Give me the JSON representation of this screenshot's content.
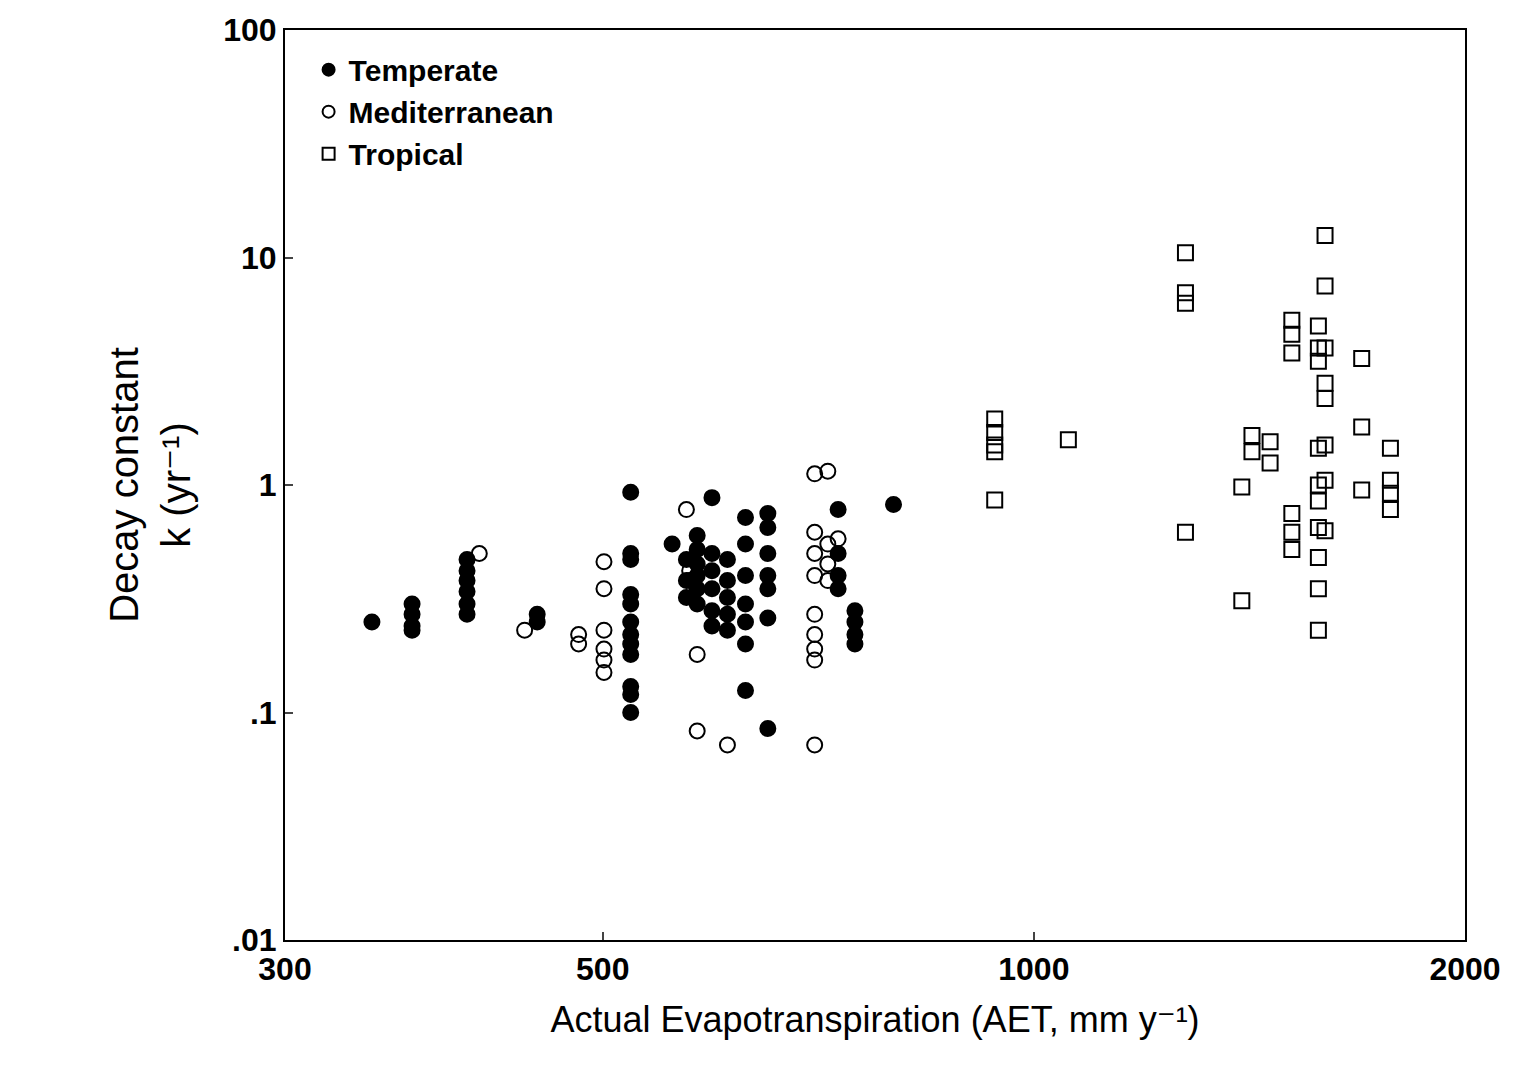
{
  "chart_data": {
    "type": "scatter",
    "xlabel": "Actual Evapotranspiration (AET, mm y⁻¹)",
    "ylabel": "Decay constant\nk (yr⁻¹)",
    "log": true,
    "grid": false,
    "legend": "top-left",
    "xlim": [
      300,
      2000
    ],
    "xticks": [
      300,
      500,
      1000,
      2000
    ],
    "ylim": [
      0.01,
      100
    ],
    "yticks": [
      {
        "value": 0.01,
        "label": ".01"
      },
      {
        "value": 0.1,
        "label": ".1"
      },
      1,
      10,
      100
    ],
    "series": [
      {
        "name": "Temperate",
        "color": "#000000",
        "marker": "circle",
        "x": [
          345,
          368,
          368,
          368,
          368,
          402,
          402,
          402,
          402,
          402,
          402,
          450,
          450,
          523,
          523,
          523,
          523,
          523,
          523,
          523,
          523,
          523,
          523,
          523,
          523,
          559,
          572,
          572,
          572,
          582,
          582,
          582,
          582,
          582,
          582,
          596,
          596,
          596,
          596,
          596,
          596,
          611,
          611,
          611,
          611,
          611,
          629,
          629,
          629,
          629,
          629,
          629,
          629,
          652,
          652,
          652,
          652,
          652,
          652,
          652,
          730,
          730,
          730,
          730,
          750,
          750,
          750,
          750,
          798
        ],
        "values": [
          0.25,
          0.3,
          0.27,
          0.24,
          0.23,
          0.47,
          0.42,
          0.38,
          0.34,
          0.3,
          0.27,
          0.27,
          0.25,
          0.93,
          0.5,
          0.47,
          0.33,
          0.3,
          0.25,
          0.22,
          0.2,
          0.18,
          0.13,
          0.12,
          0.1,
          0.55,
          0.47,
          0.38,
          0.32,
          0.6,
          0.52,
          0.45,
          0.4,
          0.35,
          0.3,
          0.88,
          0.5,
          0.42,
          0.35,
          0.28,
          0.24,
          0.47,
          0.38,
          0.32,
          0.27,
          0.23,
          0.72,
          0.55,
          0.4,
          0.3,
          0.25,
          0.2,
          0.125,
          0.75,
          0.65,
          0.5,
          0.4,
          0.35,
          0.26,
          0.085,
          0.78,
          0.5,
          0.4,
          0.35,
          0.28,
          0.25,
          0.22,
          0.2,
          0.82
        ]
      },
      {
        "name": "Mediterranean",
        "color": "#000000",
        "marker": "circle-open",
        "x": [
          410,
          441,
          481,
          481,
          501,
          501,
          501,
          501,
          501,
          501,
          572,
          575,
          575,
          582,
          582,
          611,
          703,
          703,
          703,
          703,
          703,
          703,
          703,
          703,
          703,
          718,
          718,
          718,
          718,
          730
        ],
        "values": [
          0.5,
          0.23,
          0.22,
          0.2,
          0.46,
          0.35,
          0.23,
          0.19,
          0.17,
          0.15,
          0.78,
          0.42,
          0.38,
          0.18,
          0.083,
          0.072,
          1.12,
          0.62,
          0.5,
          0.4,
          0.27,
          0.22,
          0.19,
          0.17,
          0.072,
          1.15,
          0.55,
          0.45,
          0.38,
          0.58
        ]
      },
      {
        "name": "Tropical",
        "color": "#000000",
        "marker": "square-open",
        "x": [
          939,
          939,
          939,
          939,
          939,
          1057,
          1276,
          1276,
          1276,
          1276,
          1397,
          1397,
          1420,
          1420,
          1462,
          1462,
          1514,
          1514,
          1514,
          1514,
          1514,
          1514,
          1580,
          1580,
          1580,
          1580,
          1580,
          1580,
          1580,
          1580,
          1580,
          1580,
          1597,
          1597,
          1597,
          1597,
          1597,
          1597,
          1597,
          1597,
          1694,
          1694,
          1694,
          1774,
          1774,
          1774,
          1774
        ],
        "values": [
          1.95,
          1.7,
          1.5,
          1.4,
          0.86,
          1.58,
          10.5,
          7.0,
          6.3,
          0.62,
          0.98,
          0.31,
          1.65,
          1.4,
          1.55,
          1.25,
          5.3,
          4.6,
          3.8,
          0.75,
          0.62,
          0.52,
          5.0,
          4.0,
          3.5,
          1.45,
          1.0,
          0.85,
          0.65,
          0.48,
          0.35,
          0.23,
          12.5,
          7.5,
          4.0,
          2.8,
          2.4,
          1.5,
          1.05,
          0.63,
          3.6,
          1.8,
          0.95,
          1.45,
          1.05,
          0.92,
          0.78
        ]
      }
    ]
  }
}
